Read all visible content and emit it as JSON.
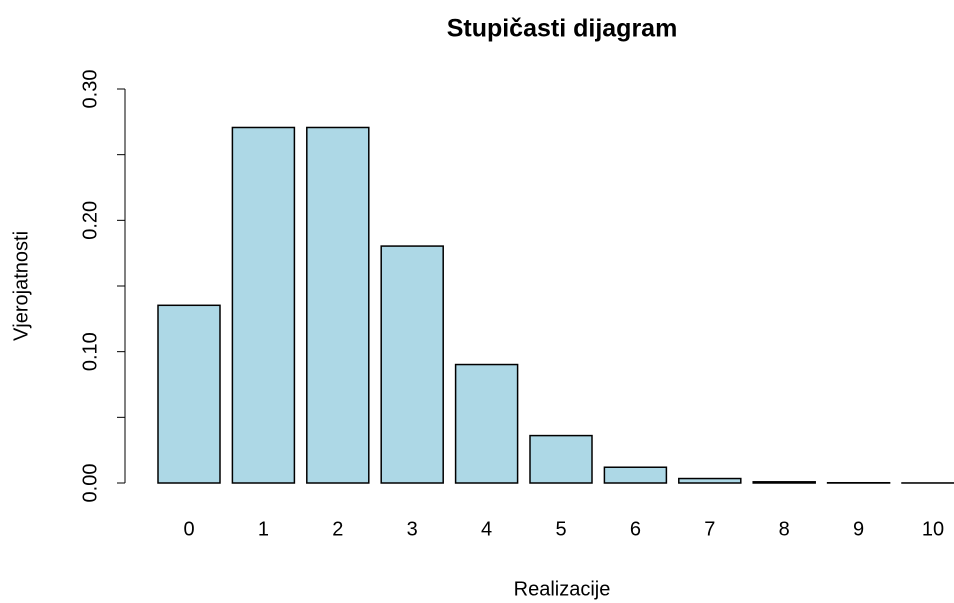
{
  "chart_data": {
    "type": "bar",
    "title": "Stupičasti dijagram",
    "x_label": "Realizacije",
    "y_label": "Vjerojatnosti",
    "categories": [
      "0",
      "1",
      "2",
      "3",
      "4",
      "5",
      "6",
      "7",
      "8",
      "9",
      "10"
    ],
    "values": [
      0.1353,
      0.2707,
      0.2707,
      0.1804,
      0.0902,
      0.0361,
      0.012,
      0.0034,
      0.0009,
      0.0002,
      4e-05
    ],
    "color": "#add8e6",
    "ylim": [
      0,
      0.3
    ],
    "yticks": [
      {
        "value": 0,
        "label": "0.00"
      },
      {
        "value": 0.1,
        "label": "0.10"
      },
      {
        "value": 0.2,
        "label": "0.20"
      },
      {
        "value": 0.3,
        "label": "0.30"
      }
    ],
    "yminor_ticks": [
      0.05,
      0.15,
      0.25
    ]
  }
}
